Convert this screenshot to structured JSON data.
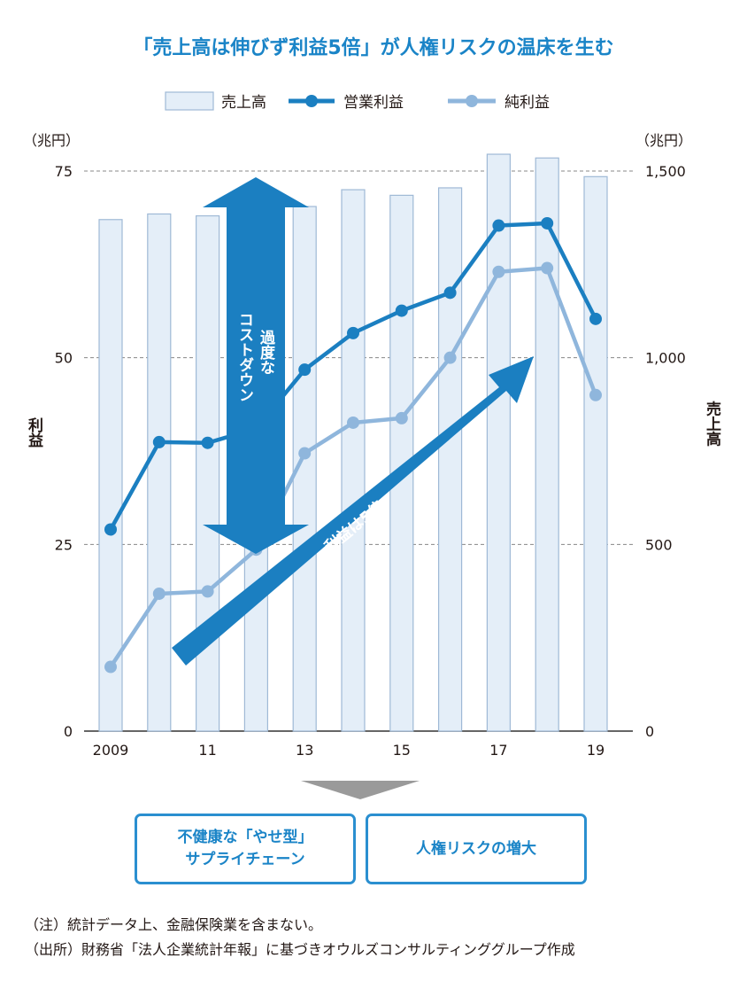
{
  "title": "「売上高は伸びず利益5倍」が人権リスクの温床を生む",
  "legend": {
    "sales": "売上高",
    "operating": "営業利益",
    "net": "純利益"
  },
  "colors": {
    "title": "#1a84c7",
    "bar_fill": "#e4eef8",
    "bar_stroke": "#9fb9d6",
    "operating": "#1b7fc1",
    "net": "#8fb6dc",
    "arrow": "#1b7fc1",
    "grid": "#888888",
    "down_triangle": "#9a9a9a"
  },
  "chart_data": {
    "type": "bar+line",
    "x": [
      "2009",
      "2010",
      "2011",
      "2012",
      "2013",
      "2014",
      "2015",
      "2016",
      "2017",
      "2018",
      "2019"
    ],
    "x_tick_labels": [
      "2009",
      "",
      "11",
      "",
      "13",
      "",
      "15",
      "",
      "17",
      "",
      "19"
    ],
    "left_axis": {
      "name": "利益",
      "unit": "（兆円）",
      "range": [
        0,
        75
      ],
      "ticks": [
        "0",
        "25",
        "50",
        "75"
      ],
      "tick_values": [
        0,
        25,
        50,
        75
      ]
    },
    "right_axis": {
      "name": "売上高",
      "unit": "（兆円）",
      "range": [
        0,
        1500
      ],
      "ticks": [
        "0",
        "500",
        "1,000",
        "1,500"
      ],
      "tick_values": [
        0,
        500,
        1000,
        1500
      ]
    },
    "grid": "dashed horizontal",
    "legend_position": "top",
    "series": [
      {
        "name": "売上高",
        "type": "bar",
        "axis": "right",
        "values": [
          1370,
          1385,
          1380,
          1370,
          1405,
          1450,
          1435,
          1455,
          1545,
          1535,
          1485
        ]
      },
      {
        "name": "営業利益",
        "type": "line",
        "axis": "left",
        "values": [
          27,
          38.7,
          38.6,
          40.5,
          48.4,
          53.3,
          56.3,
          58.7,
          67.7,
          68.0,
          55.2
        ]
      },
      {
        "name": "純利益",
        "type": "line",
        "axis": "left",
        "values": [
          8.6,
          18.4,
          18.7,
          24.3,
          37.2,
          41.3,
          41.9,
          50.0,
          61.5,
          62.0,
          45.0
        ]
      }
    ],
    "annotations": [
      {
        "text": "過度なコストダウン",
        "line1": "過度な",
        "line2": "コストダウン",
        "shape": "double-arrow-vertical"
      },
      {
        "text": "利益は5倍",
        "shape": "arrow-diagonal-up"
      }
    ]
  },
  "outcomes": [
    {
      "line1": "不健康な「やせ型」",
      "line2": "サプライチェーン"
    },
    {
      "line1": "人権リスクの増大"
    }
  ],
  "notes": [
    "（注）統計データ上、金融保険業を含まない。",
    "（出所）財務省「法人企業統計年報」に基づきオウルズコンサルティンググループ作成"
  ]
}
